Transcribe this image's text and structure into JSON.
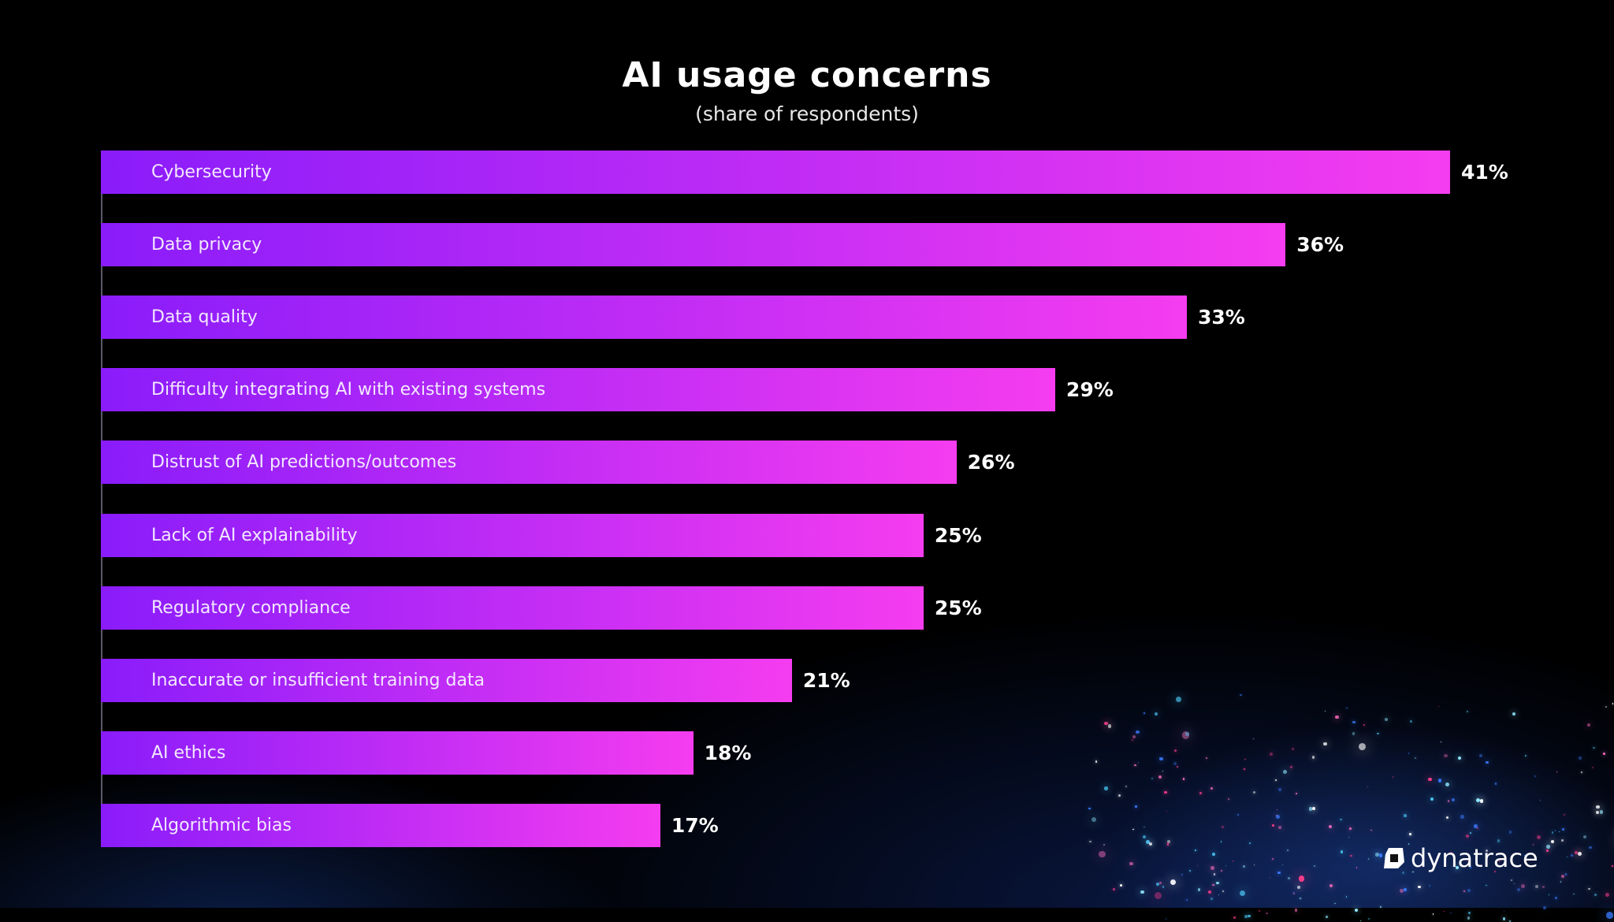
{
  "chart_data": {
    "type": "bar",
    "orientation": "horizontal",
    "title": "AI usage concerns",
    "subtitle": "(share of respondents)",
    "categories": [
      "Cybersecurity",
      "Data privacy",
      "Data quality",
      "Difficulty integrating AI with existing systems",
      "Distrust of AI predictions/outcomes",
      "Lack of AI explainability",
      "Regulatory compliance",
      "Inaccurate or insufficient training data",
      "AI ethics",
      "Algorithmic bias"
    ],
    "values": [
      41,
      36,
      33,
      29,
      26,
      25,
      25,
      21,
      18,
      17
    ],
    "value_labels": [
      "41%",
      "36%",
      "33%",
      "29%",
      "26%",
      "25%",
      "25%",
      "21%",
      "18%",
      "17%"
    ],
    "unit": "%",
    "xlim": [
      0,
      41
    ],
    "grid": false,
    "colors": {
      "bar_start": "#8a1cfa",
      "bar_end": "#f53cf0"
    }
  },
  "brand": {
    "logo_text": "dynatrace"
  }
}
